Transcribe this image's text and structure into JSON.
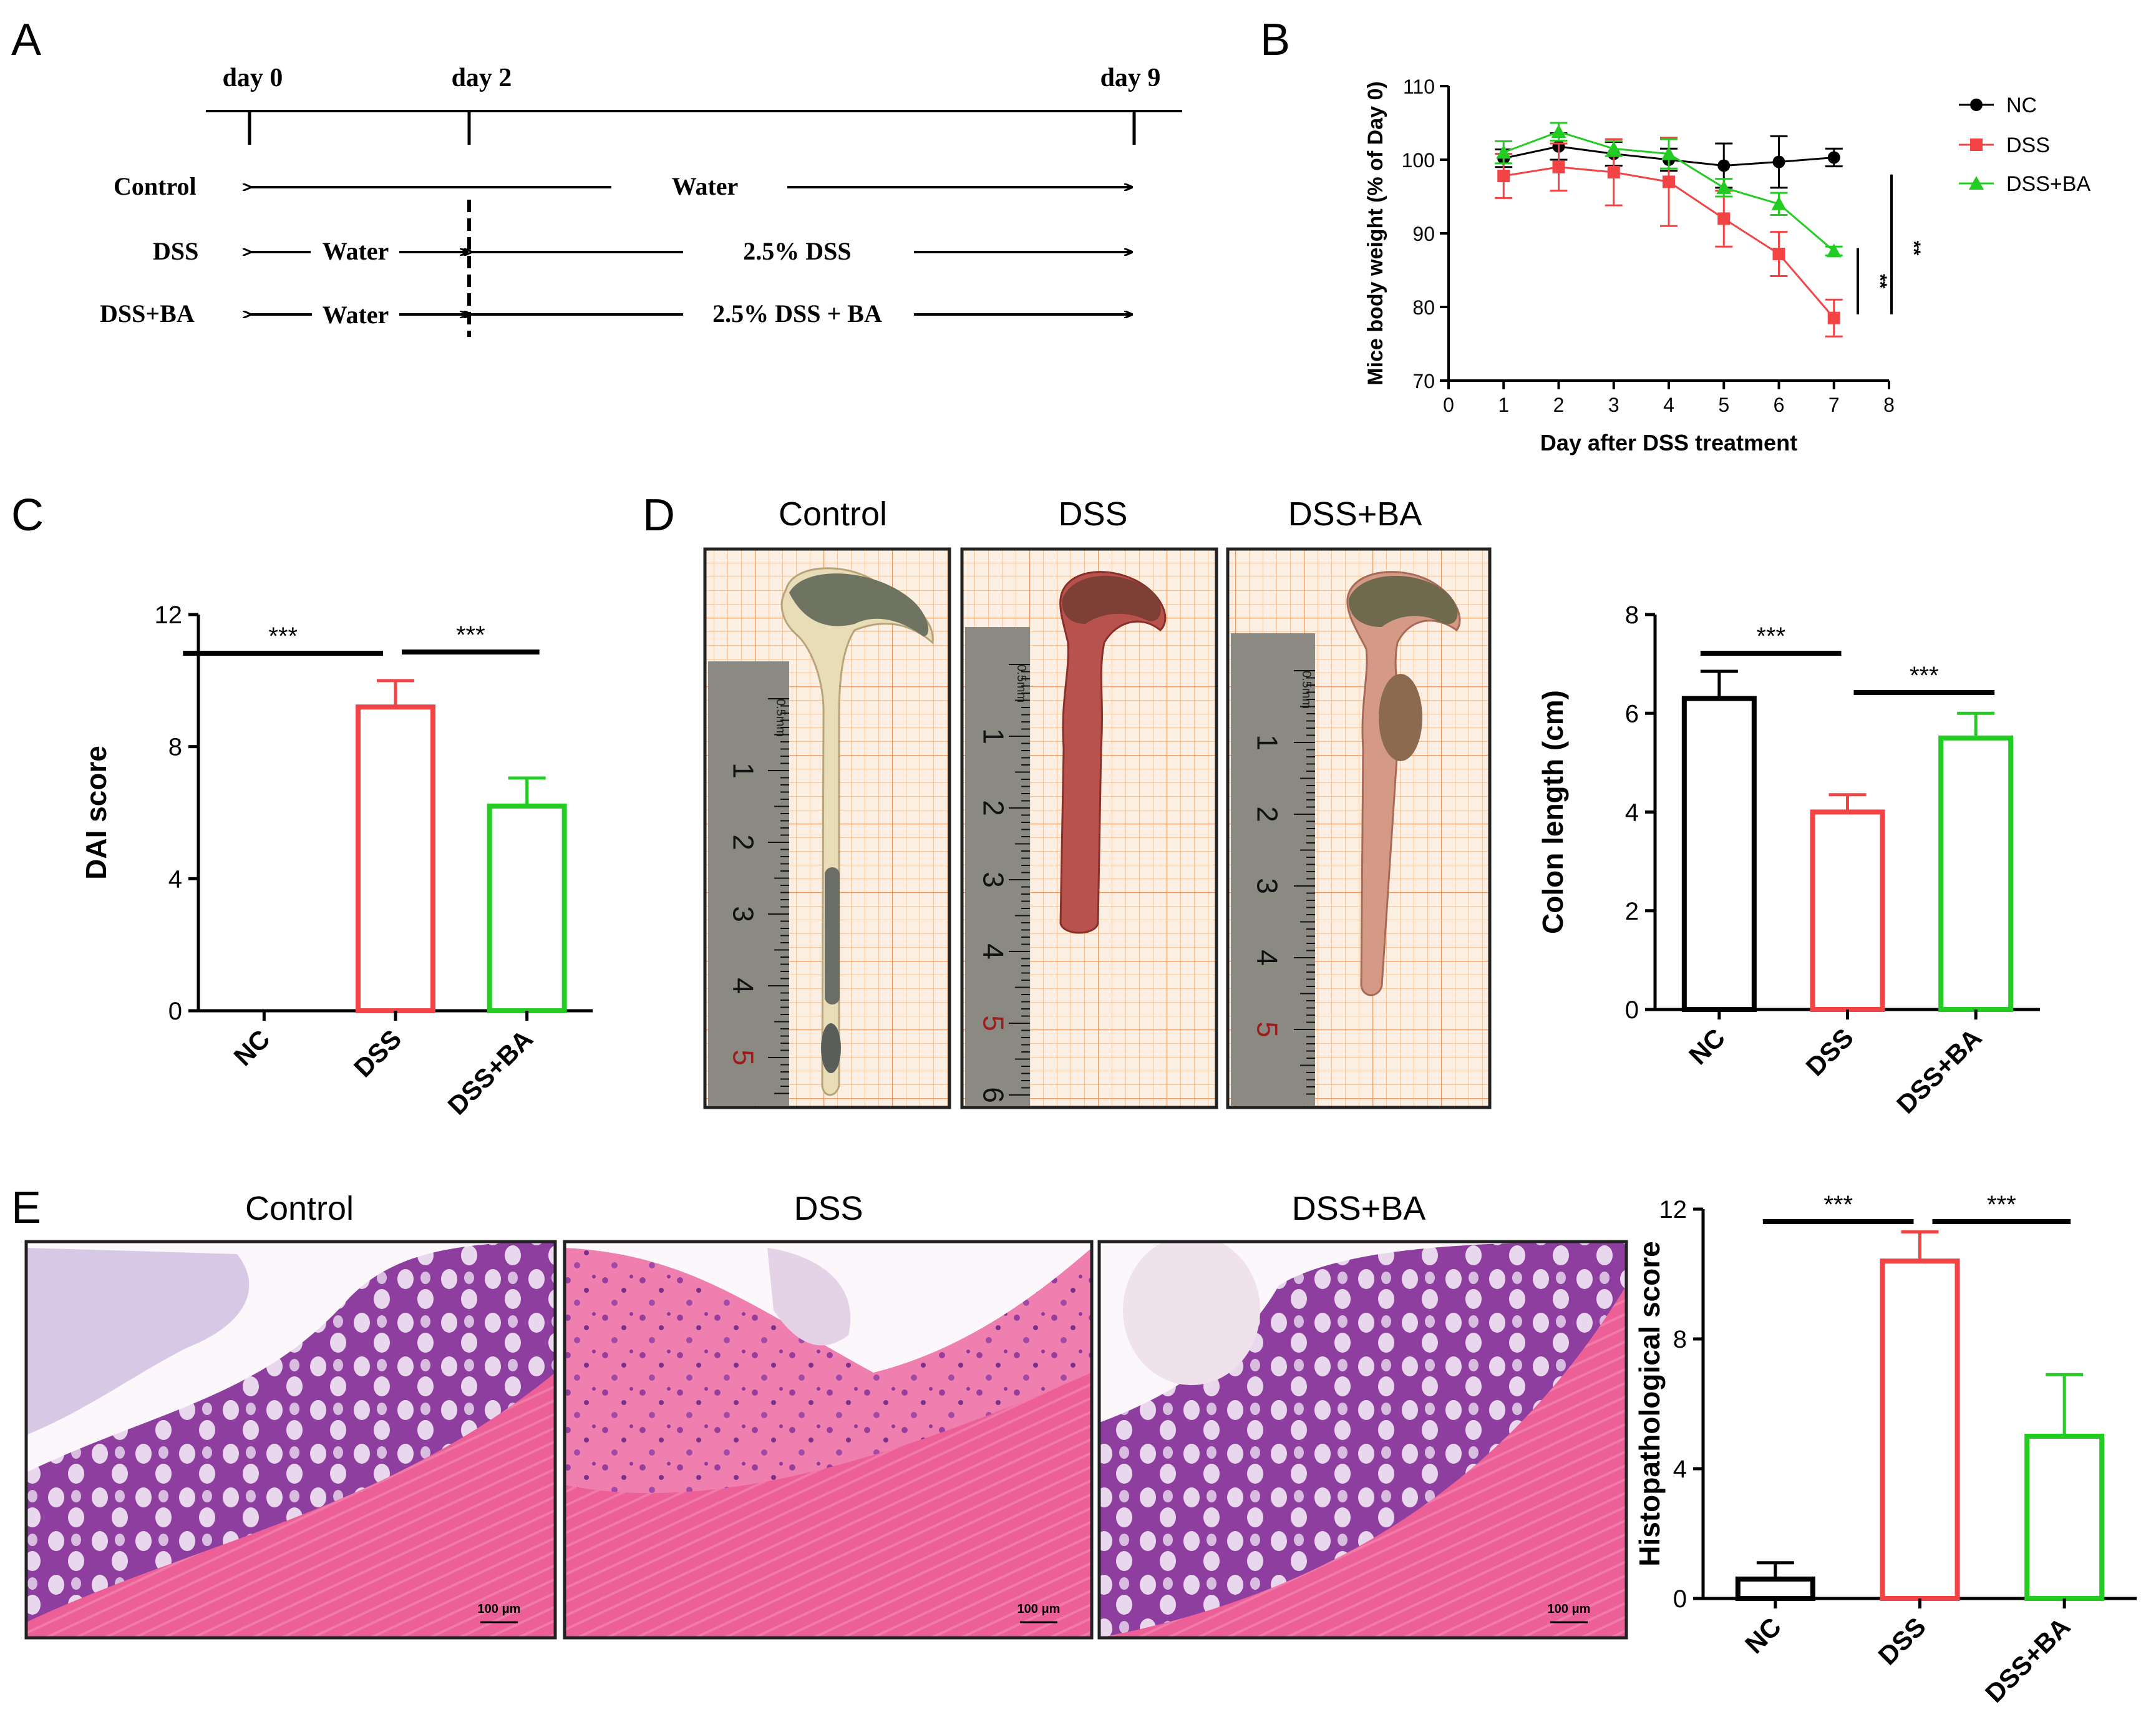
{
  "panel_letters": [
    "A",
    "B",
    "C",
    "D",
    "E"
  ],
  "timeline": {
    "days": [
      "day 0",
      "day 2",
      "day 9"
    ],
    "groups": [
      {
        "label": "Control",
        "segments": [
          {
            "text": "Water"
          }
        ]
      },
      {
        "label": "DSS",
        "segments": [
          {
            "text": "Water"
          },
          {
            "text": "2.5% DSS"
          }
        ]
      },
      {
        "label": "DSS+BA",
        "segments": [
          {
            "text": "Water"
          },
          {
            "text": "2.5% DSS + BA"
          }
        ]
      }
    ]
  },
  "photo_labels": {
    "colon": [
      "Control",
      "DSS",
      "DSS+BA"
    ],
    "histology": [
      "Control",
      "DSS",
      "DSS+BA"
    ],
    "scale_bar": "100 μm",
    "ruler_top": "0.5mm"
  },
  "colors": {
    "NC": "#000000",
    "DSS": "#f24444",
    "DSS+BA": "#22cc22",
    "ruler": "#7a7a72",
    "grid_paper": "#f4c9a2",
    "he_pink": "#e8538a",
    "he_purple": "#8a3a9a"
  },
  "chart_data": [
    {
      "id": "B",
      "type": "line",
      "title": "",
      "xlabel": "Day after DSS treatment",
      "ylabel": "Mice body weight (% of Day 0)",
      "xlim": [
        0,
        8
      ],
      "ylim": [
        70,
        110
      ],
      "xticks": [
        0,
        1,
        2,
        3,
        4,
        5,
        6,
        7,
        8
      ],
      "yticks": [
        70,
        80,
        90,
        100,
        110
      ],
      "legend": [
        "NC",
        "DSS",
        "DSS+BA"
      ],
      "legend_position": "right",
      "series": [
        {
          "name": "NC",
          "x": [
            1,
            2,
            3,
            4,
            5,
            6,
            7
          ],
          "values": [
            100.2,
            101.8,
            100.8,
            100.0,
            99.2,
            99.7,
            100.3
          ],
          "errors": [
            1.2,
            1.8,
            1.6,
            1.5,
            3.0,
            3.5,
            1.2
          ],
          "marker": "circle"
        },
        {
          "name": "DSS",
          "x": [
            1,
            2,
            3,
            4,
            5,
            6,
            7
          ],
          "values": [
            97.8,
            99.0,
            98.3,
            97.0,
            92.0,
            87.2,
            78.5
          ],
          "errors": [
            3.0,
            3.2,
            4.5,
            6.0,
            3.8,
            3.0,
            2.5
          ],
          "marker": "square"
        },
        {
          "name": "DSS+BA",
          "x": [
            1,
            2,
            3,
            4,
            5,
            6,
            7
          ],
          "values": [
            101.0,
            103.8,
            101.5,
            100.8,
            96.2,
            94.0,
            87.6
          ],
          "errors": [
            1.5,
            1.2,
            1.0,
            2.0,
            1.2,
            1.5,
            0.6
          ],
          "marker": "triangle"
        }
      ],
      "significance": [
        "**",
        "**"
      ]
    },
    {
      "id": "C",
      "type": "bar",
      "title": "",
      "xlabel": "",
      "ylabel": "DAI score",
      "ylim": [
        0,
        12
      ],
      "yticks": [
        0,
        4,
        8,
        12
      ],
      "categories": [
        "NC",
        "DSS",
        "DSS+BA"
      ],
      "values": [
        0,
        9.2,
        6.2
      ],
      "errors": [
        0,
        0.8,
        0.85
      ],
      "significance": [
        "***",
        "***"
      ]
    },
    {
      "id": "D",
      "type": "bar",
      "title": "",
      "xlabel": "",
      "ylabel": "Colon length (cm)",
      "ylim": [
        0,
        8
      ],
      "yticks": [
        0,
        2,
        4,
        6,
        8
      ],
      "categories": [
        "NC",
        "DSS",
        "DSS+BA"
      ],
      "values": [
        6.3,
        4.0,
        5.5
      ],
      "errors": [
        0.55,
        0.35,
        0.5
      ],
      "significance": [
        "***",
        "***"
      ]
    },
    {
      "id": "E",
      "type": "bar",
      "title": "",
      "xlabel": "",
      "ylabel": "Histopathological score",
      "ylim": [
        0,
        12
      ],
      "yticks": [
        0,
        4,
        8,
        12
      ],
      "categories": [
        "NC",
        "DSS",
        "DSS+BA"
      ],
      "values": [
        0.6,
        10.4,
        5.0
      ],
      "errors": [
        0.5,
        0.9,
        1.9
      ],
      "significance": [
        "***",
        "***"
      ]
    }
  ]
}
